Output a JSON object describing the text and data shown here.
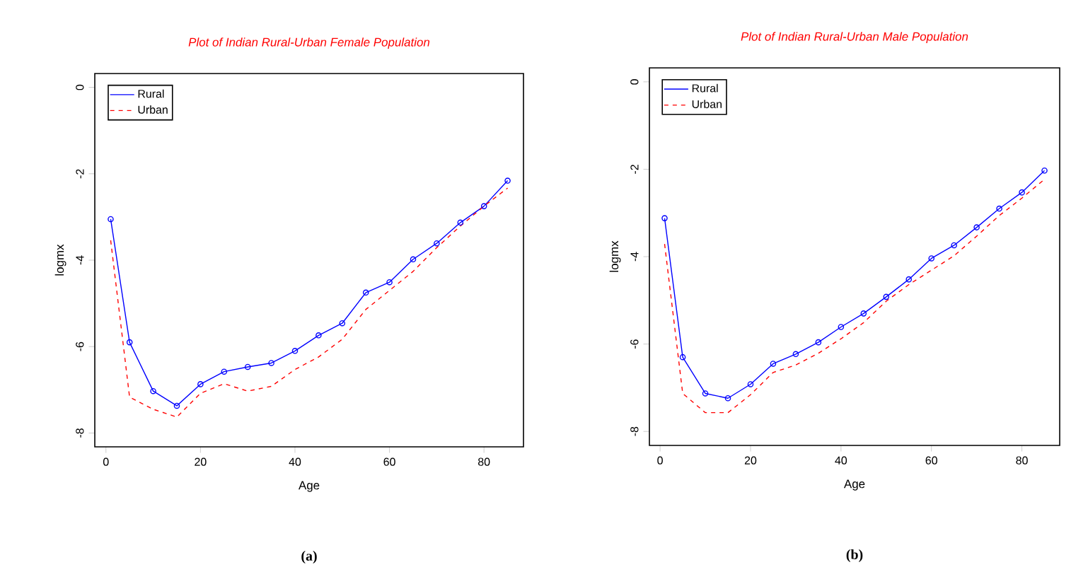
{
  "chart_data": [
    {
      "type": "line",
      "title": "Plot of Indian Rural-Urban Female Population",
      "xlabel": "Age",
      "ylabel": "logmx",
      "annotations": [
        "(a)"
      ],
      "x": [
        1,
        5,
        10,
        15,
        20,
        25,
        30,
        35,
        40,
        45,
        50,
        55,
        60,
        65,
        70,
        75,
        80,
        85
      ],
      "series": [
        {
          "name": "Rural",
          "color": "#0000ff",
          "marker": "circle",
          "line_style": "solid",
          "values": [
            -3.05,
            -5.9,
            -7.03,
            -7.37,
            -6.87,
            -6.58,
            -6.47,
            -6.38,
            -6.1,
            -5.74,
            -5.46,
            -4.75,
            -4.51,
            -3.98,
            -3.61,
            -3.13,
            -2.75,
            -2.16
          ]
        },
        {
          "name": "Urban",
          "color": "#ff0000",
          "marker": "none",
          "line_style": "dashed",
          "values": [
            -3.54,
            -7.17,
            -7.45,
            -7.63,
            -7.08,
            -6.86,
            -7.03,
            -6.92,
            -6.53,
            -6.24,
            -5.83,
            -5.14,
            -4.7,
            -4.26,
            -3.71,
            -3.21,
            -2.75,
            -2.33
          ]
        }
      ],
      "xlim": [
        -2.36,
        88.36
      ],
      "ylim": [
        -8.32,
        0.32
      ],
      "xticks": [
        0,
        20,
        40,
        60,
        80
      ],
      "yticks": [
        0,
        -2,
        -4,
        -6,
        -8
      ],
      "legend": "top left",
      "grid": false
    },
    {
      "type": "line",
      "title": "Plot of Indian Rural-Urban Male Population",
      "xlabel": "Age",
      "ylabel": "logmx",
      "annotations": [
        "(b)"
      ],
      "x": [
        1,
        5,
        10,
        15,
        20,
        25,
        30,
        35,
        40,
        45,
        50,
        55,
        60,
        65,
        70,
        75,
        80,
        85
      ],
      "series": [
        {
          "name": "Rural",
          "color": "#0000ff",
          "marker": "circle",
          "line_style": "solid",
          "values": [
            -3.12,
            -6.3,
            -7.13,
            -7.24,
            -6.92,
            -6.45,
            -6.23,
            -5.96,
            -5.61,
            -5.3,
            -4.92,
            -4.52,
            -4.04,
            -3.74,
            -3.33,
            -2.9,
            -2.53,
            -2.03
          ]
        },
        {
          "name": "Urban",
          "color": "#ff0000",
          "marker": "none",
          "line_style": "dashed",
          "values": [
            -3.71,
            -7.13,
            -7.57,
            -7.57,
            -7.16,
            -6.65,
            -6.48,
            -6.21,
            -5.88,
            -5.51,
            -5.02,
            -4.64,
            -4.31,
            -3.98,
            -3.53,
            -3.06,
            -2.66,
            -2.23
          ]
        }
      ],
      "xlim": [
        -2.36,
        88.36
      ],
      "ylim": [
        -8.32,
        0.32
      ],
      "xticks": [
        0,
        20,
        40,
        60,
        80
      ],
      "yticks": [
        0,
        -2,
        -4,
        -6,
        -8
      ],
      "legend": "top left",
      "grid": false
    }
  ]
}
